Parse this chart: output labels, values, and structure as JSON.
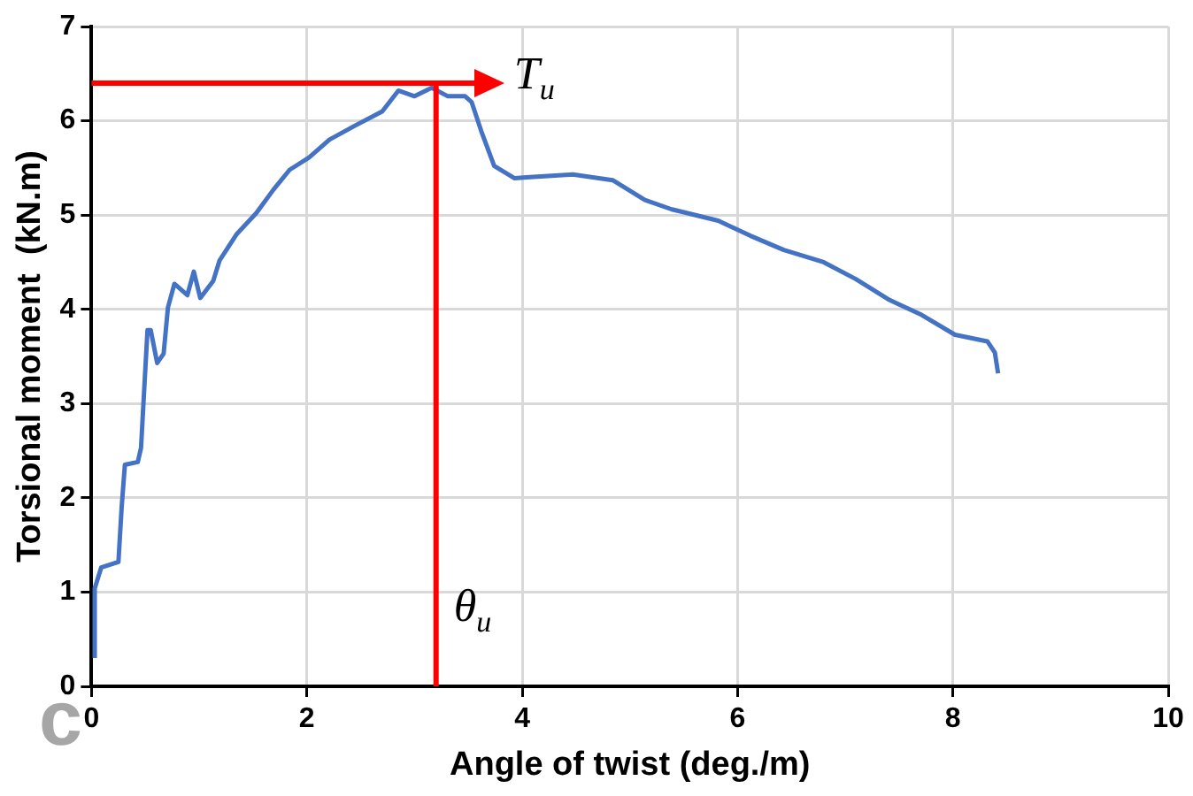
{
  "chart_data": {
    "type": "line",
    "xlabel": "Angle of twist (deg./m)",
    "ylabel": "Torsional moment  (kN.m)",
    "xlim": [
      0,
      10
    ],
    "xticks": [
      0,
      2,
      4,
      6,
      8,
      10
    ],
    "ylim": [
      0,
      7
    ],
    "yticks": [
      0,
      1,
      2,
      3,
      4,
      5,
      6,
      7
    ],
    "grid": true,
    "legend": false,
    "marker": "none",
    "line_style": "solid",
    "series": [
      {
        "color": "#4472c4",
        "x": [
          0.03,
          0.03,
          0.09,
          0.25,
          0.28,
          0.31,
          0.43,
          0.46,
          0.49,
          0.52,
          0.55,
          0.61,
          0.67,
          0.71,
          0.77,
          0.89,
          0.95,
          1.01,
          1.13,
          1.19,
          1.35,
          1.53,
          1.69,
          1.84,
          2.02,
          2.21,
          2.45,
          2.7,
          2.85,
          3.0,
          3.16,
          3.31,
          3.47,
          3.53,
          3.62,
          3.74,
          3.93,
          4.04,
          4.47,
          4.84,
          5.14,
          5.39,
          5.82,
          6.12,
          6.43,
          6.8,
          7.1,
          7.41,
          7.71,
          8.02,
          8.32,
          8.39,
          8.42
        ],
        "values": [
          0.3,
          1.04,
          1.26,
          1.32,
          1.9,
          2.35,
          2.38,
          2.53,
          3.16,
          3.78,
          3.78,
          3.43,
          3.53,
          4.02,
          4.27,
          4.15,
          4.4,
          4.12,
          4.3,
          4.52,
          4.8,
          5.02,
          5.27,
          5.48,
          5.61,
          5.8,
          5.95,
          6.1,
          6.32,
          6.26,
          6.35,
          6.26,
          6.26,
          6.2,
          5.89,
          5.52,
          5.39,
          5.4,
          5.43,
          5.37,
          5.16,
          5.06,
          4.94,
          4.78,
          4.63,
          4.5,
          4.32,
          4.1,
          3.94,
          3.73,
          3.66,
          3.54,
          3.32
        ]
      }
    ],
    "ref_lines": [
      {
        "axis": "y",
        "value": 6.4,
        "label": "T$_{u}$",
        "color": "#ff0000"
      },
      {
        "axis": "x",
        "value": 3.2,
        "label": "θ$_{u}$",
        "color": "#ff0000"
      }
    ],
    "annotations": [
      "c"
    ]
  }
}
